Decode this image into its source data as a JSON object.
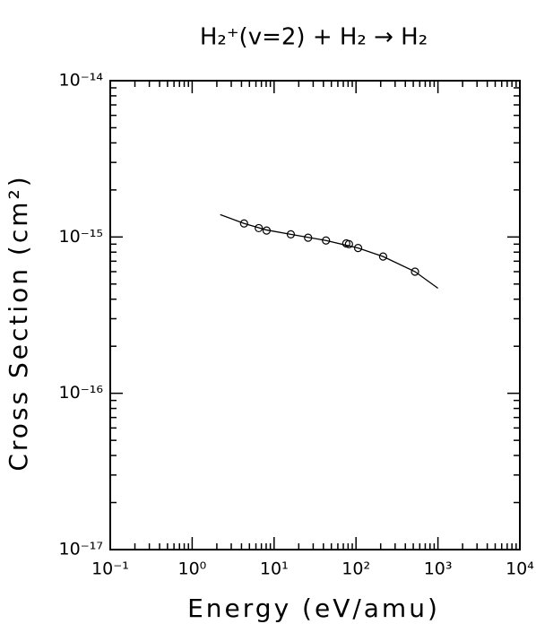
{
  "chart_data": {
    "type": "scatter",
    "title": "H₂⁺(v=2) + H₂ → H₂",
    "x_label": "Energy (eV/amu)",
    "y_label": "Cross Section (cm²)",
    "log_x": true,
    "log_y": true,
    "grid": false,
    "xlim": [
      0.1,
      10000
    ],
    "ylim": [
      1e-17,
      1e-14
    ],
    "xticks": [
      {
        "value": 0.1,
        "label": "10⁻¹"
      },
      {
        "value": 1,
        "label": "10⁰"
      },
      {
        "value": 10,
        "label": "10¹"
      },
      {
        "value": 100,
        "label": "10²"
      },
      {
        "value": 1000,
        "label": "10³"
      },
      {
        "value": 10000,
        "label": "10⁴"
      }
    ],
    "yticks": [
      {
        "value": 1e-17,
        "label": "10⁻¹⁷"
      },
      {
        "value": 1e-16,
        "label": "10⁻¹⁶"
      },
      {
        "value": 1e-15,
        "label": "10⁻¹⁵"
      },
      {
        "value": 1e-14,
        "label": "10⁻¹⁴"
      }
    ],
    "series": [
      {
        "style": "line",
        "color": "#000000",
        "x": [
          2.2,
          4.3,
          8,
          16,
          43,
          106,
          214,
          525,
          1000
        ],
        "values": [
          1.39e-15,
          1.22e-15,
          1.11e-15,
          1.04e-15,
          9.5e-16,
          8.5e-16,
          7.5e-16,
          6e-16,
          4.7e-16
        ]
      },
      {
        "style": "markers",
        "color": "#000000",
        "x": [
          4.3,
          6.5,
          8.1,
          16,
          26,
          43,
          76,
          82,
          106,
          214,
          525
        ],
        "values": [
          1.22e-15,
          1.14e-15,
          1.1e-15,
          1.04e-15,
          9.9e-16,
          9.5e-16,
          9.1e-16,
          9e-16,
          8.5e-16,
          7.5e-16,
          6e-16
        ]
      }
    ]
  }
}
